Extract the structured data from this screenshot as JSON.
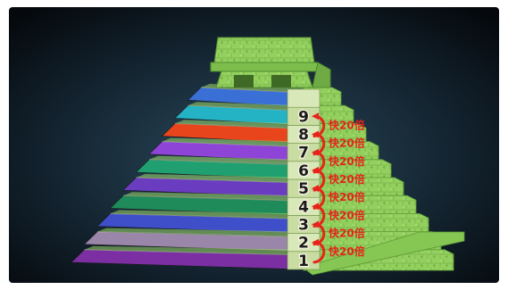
{
  "diagram": {
    "levels": [
      {
        "number": "1",
        "color": "#7b2fa3"
      },
      {
        "number": "2",
        "color": "#9a86a8"
      },
      {
        "number": "3",
        "color": "#3f4ec9"
      },
      {
        "number": "4",
        "color": "#1f8a5a"
      },
      {
        "number": "5",
        "color": "#6a3cc0"
      },
      {
        "number": "6",
        "color": "#20a070"
      },
      {
        "number": "7",
        "color": "#8e44d6"
      },
      {
        "number": "8",
        "color": "#e8451c"
      },
      {
        "number": "9",
        "color": "#24b3c4"
      },
      {
        "number": "",
        "color": "#3a6fd6"
      }
    ],
    "speed_labels": [
      "快20倍",
      "快20倍",
      "快20倍",
      "快20倍",
      "快20倍",
      "快20倍",
      "快20倍",
      "快20倍"
    ],
    "colors": {
      "stone_green": "#8fcf5a",
      "stone_dark": "#4f8a2e",
      "arrow_red": "#e8231a",
      "frame_bg": "#0d1a26"
    }
  }
}
